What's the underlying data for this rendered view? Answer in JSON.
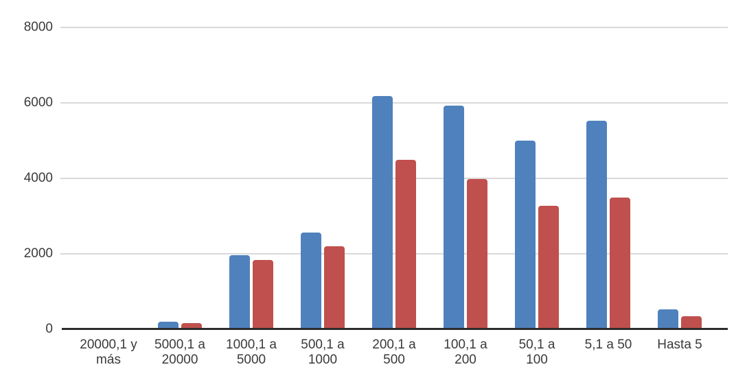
{
  "chart_data": {
    "type": "bar",
    "title": "",
    "xlabel": "",
    "ylabel": "",
    "categories": [
      "20000,1 y más",
      "5000,1 a 20000",
      "1000,1 a 5000",
      "500,1 a 1000",
      "200,1 a 500",
      "100,1 a 200",
      "50,1 a 100",
      "5,1 a 50",
      "Hasta 5"
    ],
    "series": [
      {
        "color": "#4F81BD",
        "values": [
          40,
          200,
          1970,
          2560,
          6180,
          5930,
          5000,
          5520,
          520
        ]
      },
      {
        "color": "#C0504D",
        "values": [
          35,
          160,
          1830,
          2200,
          4500,
          3980,
          3280,
          3490,
          340
        ]
      }
    ],
    "ylim": [
      0,
      8000
    ],
    "yticks": [
      0,
      2000,
      4000,
      6000,
      8000
    ],
    "grid": true,
    "legend": "none",
    "colors": {
      "background": "#FFFFFF",
      "gridline": "#D9D9D9",
      "axis_line": "#2B2B2B",
      "tick_label": "#3A3A3A"
    }
  }
}
